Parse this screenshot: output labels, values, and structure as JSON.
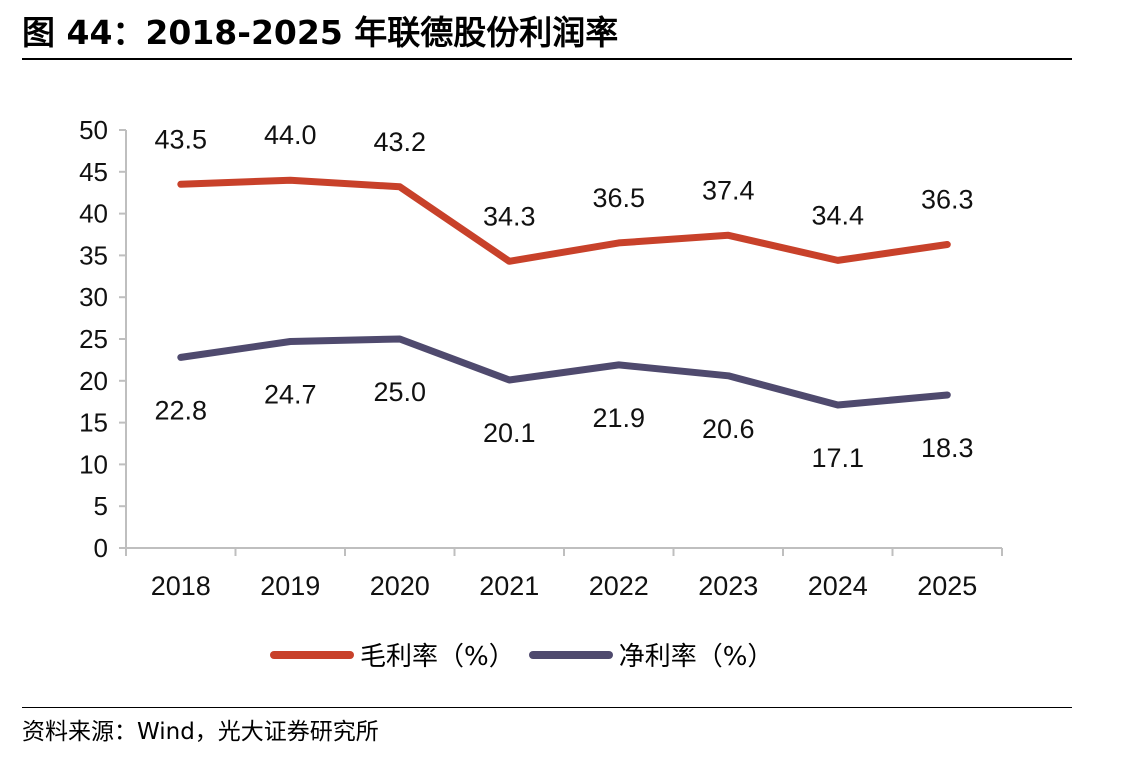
{
  "title": "图 44：2018-2025 年联德股份利润率",
  "source": "资料来源：Wind，光大证券研究所",
  "chart_data": {
    "type": "line",
    "categories": [
      "2018",
      "2019",
      "2020",
      "2021",
      "2022",
      "2023",
      "2024",
      "2025"
    ],
    "ylim": [
      0,
      50
    ],
    "yticks": [
      0,
      5,
      10,
      15,
      20,
      25,
      30,
      35,
      40,
      45,
      50
    ],
    "grid": false,
    "legend": "bottom",
    "series": [
      {
        "name": "毛利率（%）",
        "color": "#C8412A",
        "values": [
          43.5,
          44.0,
          43.2,
          34.3,
          36.5,
          37.4,
          34.4,
          36.3
        ],
        "labels": [
          "43.5",
          "44.0",
          "43.2",
          "34.3",
          "36.5",
          "37.4",
          "34.4",
          "36.3"
        ]
      },
      {
        "name": "净利率（%）",
        "color": "#4F4A6E",
        "values": [
          22.8,
          24.7,
          25.0,
          20.1,
          21.9,
          20.6,
          17.1,
          18.3
        ],
        "labels": [
          "22.8",
          "24.7",
          "25.0",
          "20.1",
          "21.9",
          "20.6",
          "17.1",
          "18.3"
        ]
      }
    ]
  }
}
